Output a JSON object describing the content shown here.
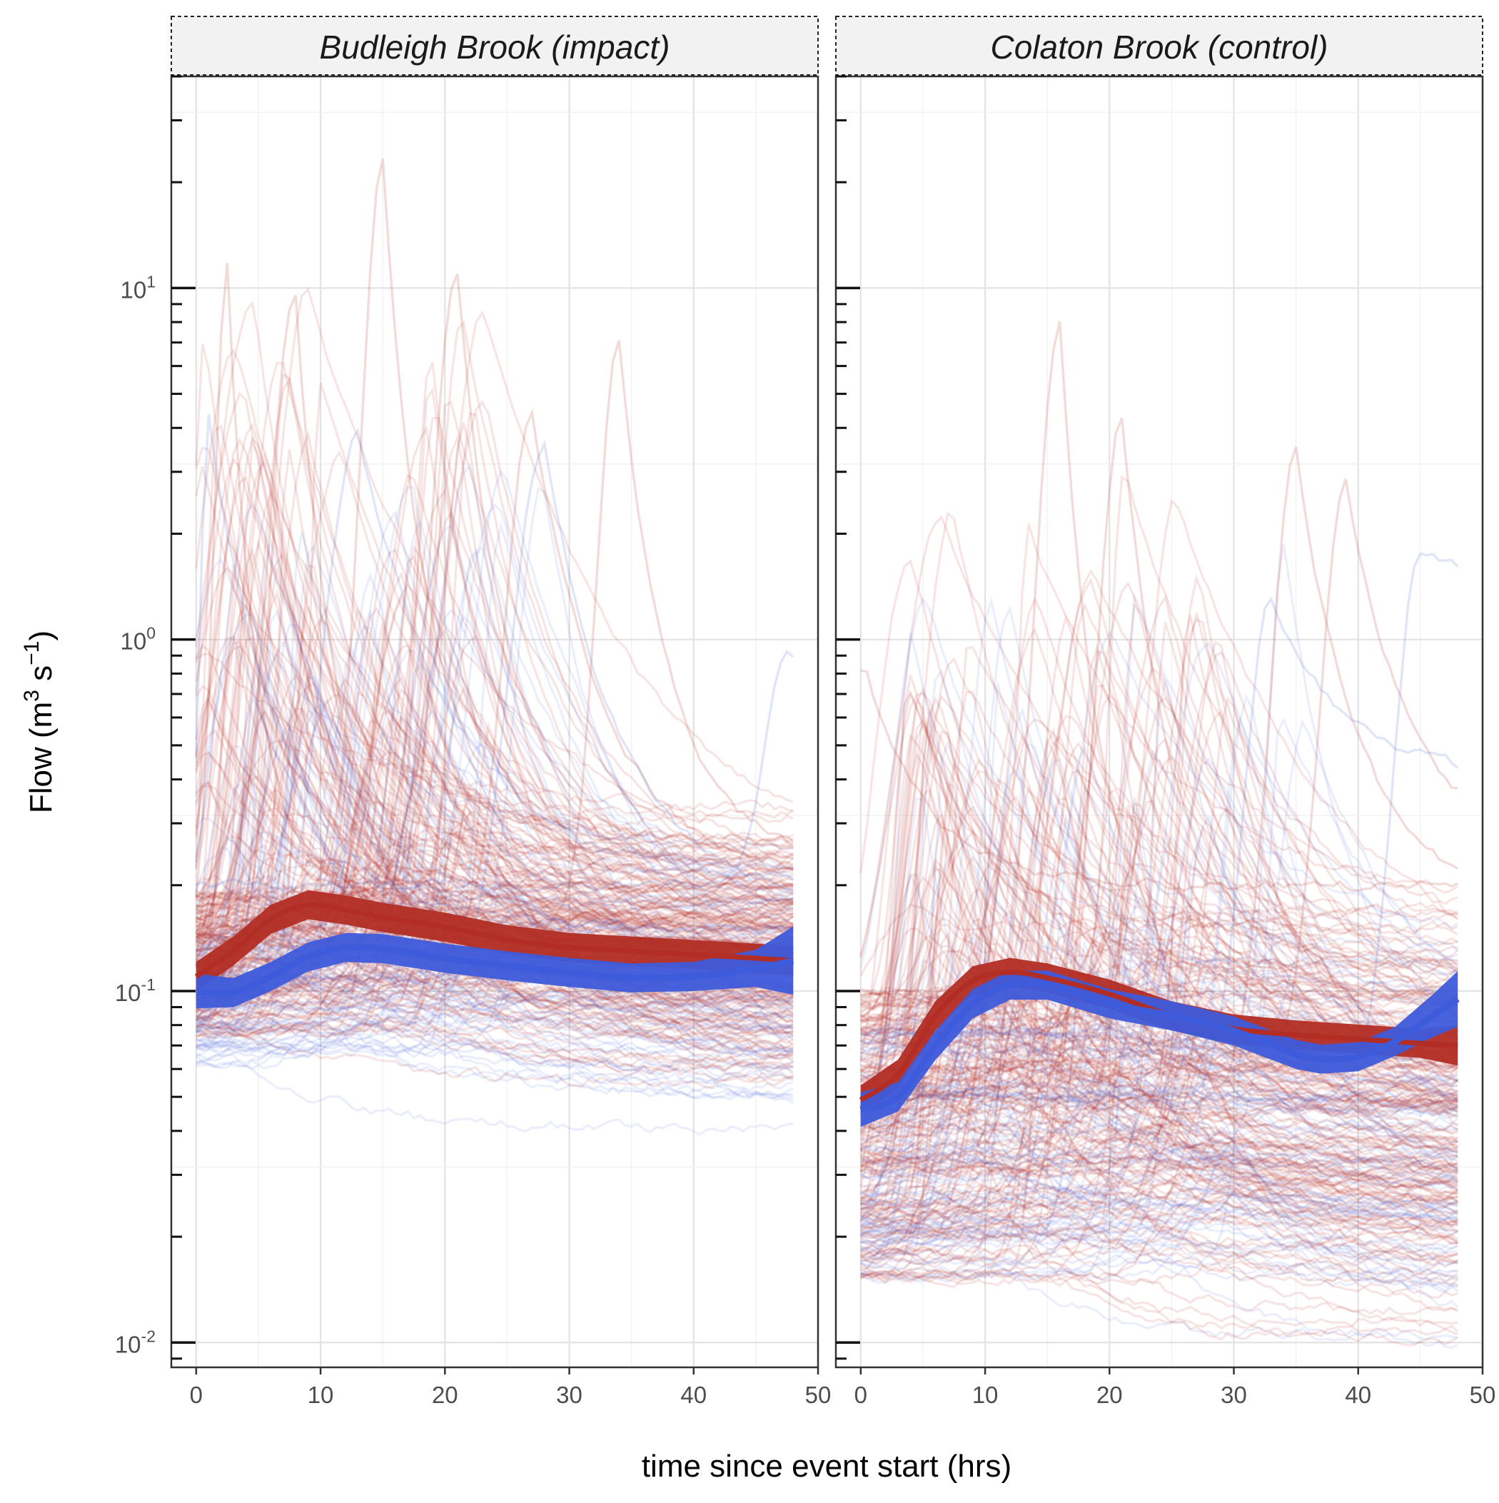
{
  "chart_data": {
    "type": "line",
    "xlabel": "time since event start (hrs)",
    "ylabel": "Flow  (m³ s⁻¹)",
    "ylabel_parts": {
      "main": "Flow  (m",
      "sup1": "3",
      "mid": " s",
      "sup2": "−1",
      "end": ")"
    },
    "xlim": [
      -2,
      50
    ],
    "ylim": [
      0.0085,
      40
    ],
    "x_scale": "linear",
    "y_scale": "log10",
    "x_ticks": [
      0,
      10,
      20,
      30,
      40,
      50
    ],
    "x_tick_labels": [
      "0",
      "10",
      "20",
      "30",
      "40",
      "50"
    ],
    "y_ticks": [
      0.01,
      0.1,
      1,
      10
    ],
    "y_tick_labels": [
      {
        "base": "10",
        "exp": "-2"
      },
      {
        "base": "10",
        "exp": "-1"
      },
      {
        "base": "10",
        "exp": "0"
      },
      {
        "base": "10",
        "exp": "1"
      }
    ],
    "grid": true,
    "legend": "none",
    "colors": {
      "red": "#B22D24",
      "blue": "#3E5BDB",
      "event_red": "rgba(178,45,36,0.13)",
      "event_blue": "rgba(70,100,215,0.11)",
      "panel_border": "#333333",
      "strip_fill": "#F2F2F2",
      "grid": "#E5E5E5"
    },
    "panels": [
      {
        "title": "Budleigh Brook (impact)",
        "smooth_red": {
          "x": [
            0,
            3,
            6,
            9,
            12,
            15,
            20,
            25,
            30,
            35,
            40,
            45,
            48
          ],
          "y": [
            0.11,
            0.13,
            0.16,
            0.176,
            0.17,
            0.162,
            0.152,
            0.14,
            0.133,
            0.13,
            0.127,
            0.124,
            0.122
          ],
          "band": [
            0.1,
            0.1,
            0.1,
            0.1,
            0.1,
            0.1,
            0.1,
            0.1,
            0.1,
            0.1,
            0.1,
            0.1,
            0.1
          ]
        },
        "smooth_blue": {
          "x": [
            0,
            3,
            6,
            9,
            12,
            15,
            20,
            25,
            30,
            35,
            40,
            45,
            48
          ],
          "y": [
            0.1,
            0.099,
            0.11,
            0.125,
            0.133,
            0.132,
            0.124,
            0.118,
            0.113,
            0.109,
            0.11,
            0.116,
            0.122
          ],
          "band": [
            0.12,
            0.1,
            0.1,
            0.1,
            0.1,
            0.1,
            0.1,
            0.1,
            0.1,
            0.1,
            0.1,
            0.13,
            0.25
          ]
        },
        "events_red": {
          "count": 200,
          "base_min": 0.075,
          "base_max": 0.19,
          "peak_time_min": 0.5,
          "peak_time_max": 24,
          "peak_ratio_max": 70,
          "decay_min": 4,
          "decay_max": 13
        },
        "events_blue": {
          "count": 90,
          "base_min": 0.06,
          "base_max": 0.14,
          "peak_time_min": 1,
          "peak_time_max": 28,
          "peak_ratio_max": 35,
          "decay_min": 4,
          "decay_max": 13
        },
        "highlight_events": [
          {
            "color": "red",
            "start": 0.14,
            "t_peak": 2.5,
            "peak": 11.5,
            "rise": 1.5,
            "decay": 2.2,
            "end": 0.2
          },
          {
            "color": "red",
            "start": 0.16,
            "t_peak": 8,
            "peak": 10.0,
            "rise": 3,
            "decay": 3,
            "end": 0.2
          },
          {
            "color": "red",
            "start": 0.18,
            "t_peak": 15,
            "peak": 24.0,
            "rise": 2.5,
            "decay": 3.5,
            "end": 0.27
          },
          {
            "color": "red",
            "start": 0.14,
            "t_peak": 21,
            "peak": 11.0,
            "rise": 3,
            "decay": 4,
            "end": 0.25
          },
          {
            "color": "red",
            "start": 0.15,
            "t_peak": 34,
            "peak": 7.0,
            "rise": 2.5,
            "decay": 4,
            "end": 0.24
          },
          {
            "color": "red",
            "start": 0.14,
            "t_peak": 27,
            "peak": 4.5,
            "rise": 3,
            "decay": 6,
            "end": 0.2
          },
          {
            "color": "blue",
            "start": 0.12,
            "t_peak": 1,
            "peak": 4.3,
            "rise": 1,
            "decay": 6,
            "end": 0.15
          },
          {
            "color": "blue",
            "start": 0.1,
            "t_peak": 13,
            "peak": 3.8,
            "rise": 4,
            "decay": 8,
            "end": 0.2
          },
          {
            "color": "blue",
            "start": 0.09,
            "t_peak": 28,
            "peak": 3.6,
            "rise": 4,
            "decay": 6,
            "end": 0.18
          },
          {
            "color": "blue",
            "start": 0.2,
            "t_peak": 47.5,
            "peak": 0.9,
            "rise": 2.5,
            "decay": 3,
            "end": 0.9
          }
        ]
      },
      {
        "title": "Colaton Brook (control)",
        "smooth_red": {
          "x": [
            0,
            3,
            6,
            9,
            12,
            15,
            20,
            25,
            30,
            35,
            40,
            45,
            48
          ],
          "y": [
            0.049,
            0.058,
            0.085,
            0.107,
            0.113,
            0.109,
            0.098,
            0.085,
            0.078,
            0.075,
            0.073,
            0.071,
            0.07
          ],
          "band": [
            0.1,
            0.1,
            0.1,
            0.1,
            0.1,
            0.1,
            0.1,
            0.1,
            0.1,
            0.1,
            0.1,
            0.1,
            0.14
          ]
        },
        "smooth_blue": {
          "x": [
            0,
            3,
            6,
            9,
            12,
            15,
            20,
            25,
            30,
            35,
            37,
            40,
            43,
            46,
            48
          ],
          "y": [
            0.046,
            0.05,
            0.07,
            0.092,
            0.104,
            0.104,
            0.092,
            0.085,
            0.077,
            0.066,
            0.064,
            0.065,
            0.072,
            0.085,
            0.095
          ],
          "band": [
            0.12,
            0.1,
            0.1,
            0.1,
            0.1,
            0.1,
            0.1,
            0.1,
            0.1,
            0.1,
            0.1,
            0.1,
            0.1,
            0.15,
            0.2
          ]
        },
        "events_red": {
          "count": 210,
          "base_min": 0.015,
          "base_max": 0.1,
          "peak_time_min": 4,
          "peak_time_max": 30,
          "peak_ratio_max": 40,
          "decay_min": 5,
          "decay_max": 14
        },
        "events_blue": {
          "count": 100,
          "base_min": 0.015,
          "base_max": 0.08,
          "peak_time_min": 4,
          "peak_time_max": 36,
          "peak_ratio_max": 30,
          "decay_min": 5,
          "decay_max": 14
        },
        "highlight_events": [
          {
            "color": "red",
            "start": 0.05,
            "t_peak": 16,
            "peak": 8.0,
            "rise": 3,
            "decay": 3,
            "end": 0.12
          },
          {
            "color": "red",
            "start": 0.05,
            "t_peak": 21,
            "peak": 4.3,
            "rise": 3,
            "decay": 4,
            "end": 0.12
          },
          {
            "color": "red",
            "start": 0.05,
            "t_peak": 35,
            "peak": 3.4,
            "rise": 3,
            "decay": 5,
            "end": 0.18
          },
          {
            "color": "red",
            "start": 0.06,
            "t_peak": 39,
            "peak": 2.8,
            "rise": 3,
            "decay": 5,
            "end": 0.25
          },
          {
            "color": "blue",
            "start": 0.05,
            "t_peak": 45,
            "peak": 1.8,
            "rise": 3,
            "decay": 5,
            "end": 1.4
          },
          {
            "color": "blue",
            "start": 0.05,
            "t_peak": 33,
            "peak": 1.3,
            "rise": 3,
            "decay": 6,
            "end": 0.4
          },
          {
            "color": "red",
            "start": 0.8,
            "t_peak": 0.5,
            "peak": 0.8,
            "rise": 1,
            "decay": 5,
            "end": 0.2
          }
        ]
      }
    ]
  }
}
